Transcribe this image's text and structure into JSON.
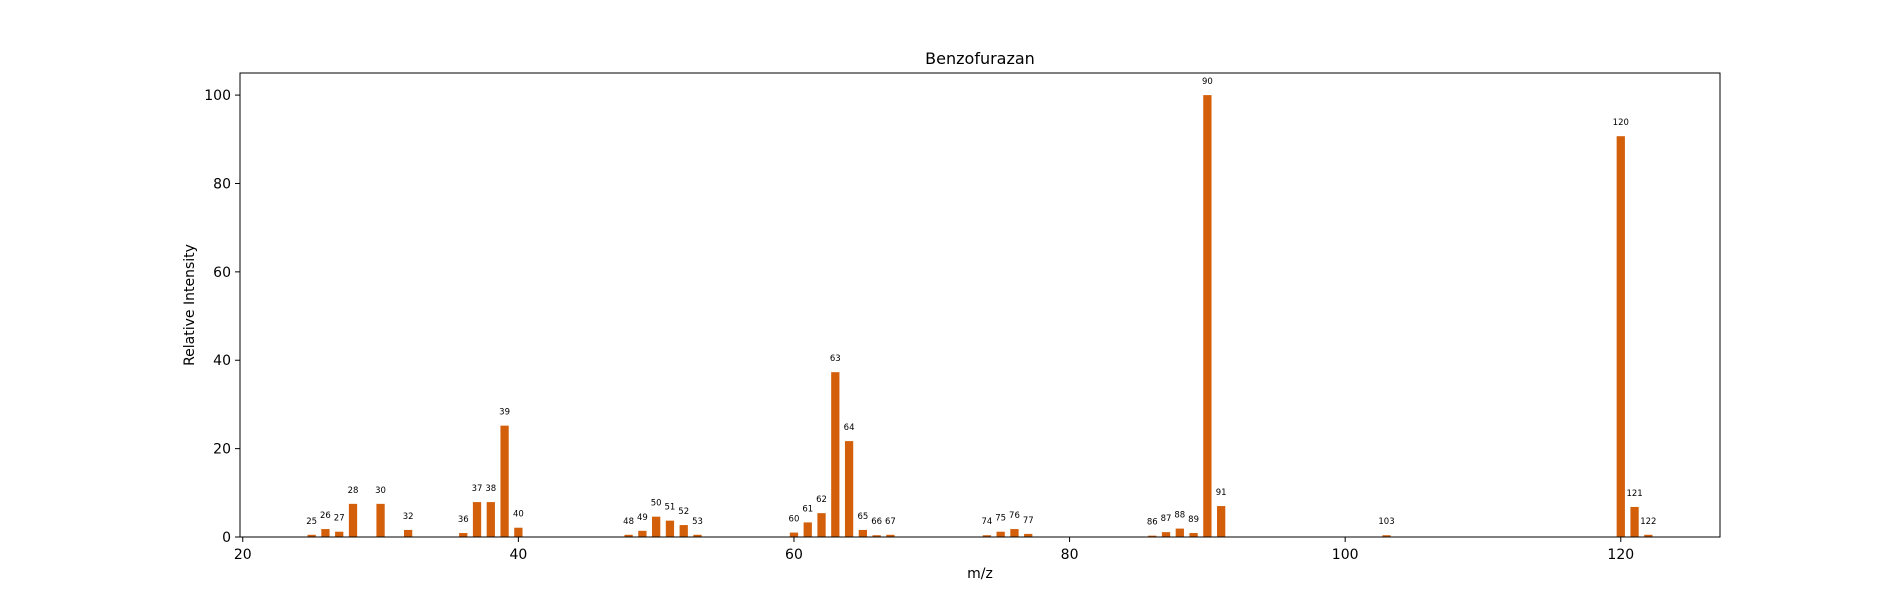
{
  "chart_data": {
    "type": "bar",
    "title": "Benzofurazan",
    "xlabel": "m/z",
    "ylabel": "Relative Intensity",
    "xlim": [
      19.8,
      127.2
    ],
    "ylim": [
      0,
      105
    ],
    "xticks": [
      20,
      40,
      60,
      80,
      100,
      120
    ],
    "yticks": [
      0,
      20,
      40,
      60,
      80,
      100
    ],
    "grid": false,
    "legend": "none",
    "bar_color": "#d35f0a",
    "bar_width": 0.6,
    "series": [
      {
        "x": [
          25,
          26,
          27,
          28,
          30,
          32,
          36,
          37,
          38,
          39,
          40,
          48,
          49,
          50,
          51,
          52,
          53,
          60,
          61,
          62,
          63,
          64,
          65,
          66,
          67,
          74,
          75,
          76,
          77,
          86,
          87,
          88,
          89,
          90,
          91,
          103,
          120,
          121,
          122
        ],
        "values": [
          0.5,
          1.8,
          1.2,
          7.5,
          7.5,
          1.6,
          0.9,
          7.9,
          7.9,
          25.2,
          2.1,
          0.5,
          1.4,
          4.6,
          3.7,
          2.7,
          0.5,
          1.0,
          3.3,
          5.4,
          37.3,
          21.7,
          1.6,
          0.4,
          0.5,
          0.4,
          1.2,
          1.8,
          0.7,
          0.3,
          1.1,
          1.9,
          0.9,
          100,
          7.0,
          0.4,
          90.7,
          6.8,
          0.5
        ],
        "labels": [
          "25",
          "26",
          "27",
          "28",
          "30",
          "32",
          "36",
          "37",
          "38",
          "39",
          "40",
          "48",
          "49",
          "50",
          "51",
          "52",
          "53",
          "60",
          "61",
          "62",
          "63",
          "64",
          "65",
          "66",
          "67",
          "74",
          "75",
          "76",
          "77",
          "86",
          "87",
          "88",
          "89",
          "90",
          "91",
          "103",
          "120",
          "121",
          "122"
        ]
      }
    ]
  }
}
